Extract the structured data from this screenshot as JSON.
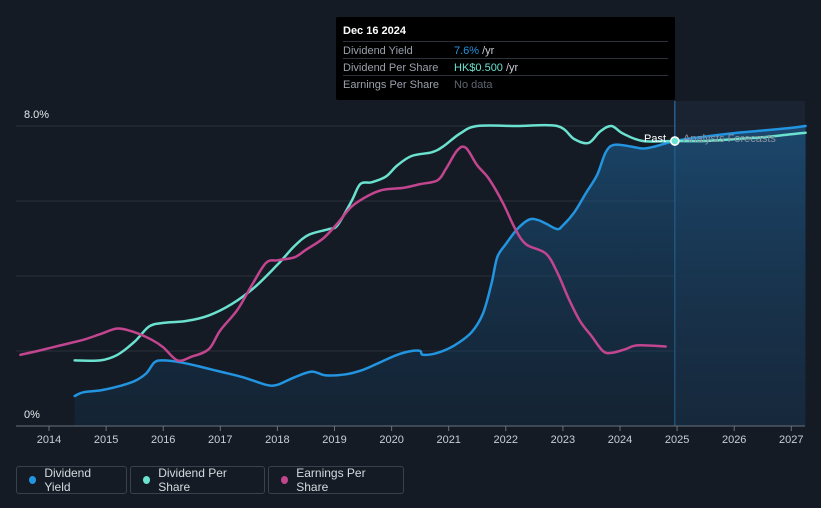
{
  "tooltip": {
    "date": "Dec 16 2024",
    "rows": [
      {
        "label": "Dividend Yield",
        "value": "7.6%",
        "unit": "/yr"
      },
      {
        "label": "Dividend Per Share",
        "value": "HK$0.500",
        "unit": "/yr"
      },
      {
        "label": "Earnings Per Share",
        "value": "No data",
        "unit": ""
      }
    ]
  },
  "annotations": {
    "past": "Past",
    "forecast": "Analysts Forecasts"
  },
  "legend": [
    {
      "label": "Dividend Yield",
      "color": "#2394df"
    },
    {
      "label": "Dividend Per Share",
      "color": "#6be1cf"
    },
    {
      "label": "Earnings Per Share",
      "color": "#c2458f"
    }
  ],
  "chart_data": {
    "type": "line",
    "title": "",
    "xlabel": "",
    "ylabel": "",
    "x_ticks": [
      "2014",
      "2015",
      "2016",
      "2017",
      "2018",
      "2019",
      "2020",
      "2021",
      "2022",
      "2023",
      "2024",
      "2025",
      "2026",
      "2027"
    ],
    "y_ticks": [
      "0%",
      "8.0%"
    ],
    "ylim": [
      0,
      8.0
    ],
    "xlim": [
      2013.5,
      2027.25
    ],
    "grid": true,
    "forecast_start": 2024.96,
    "series": [
      {
        "name": "Dividend Yield",
        "color": "#2394df",
        "area": true,
        "points": [
          [
            2014.45,
            0.8
          ],
          [
            2014.6,
            0.9
          ],
          [
            2014.9,
            0.95
          ],
          [
            2015.2,
            1.05
          ],
          [
            2015.5,
            1.2
          ],
          [
            2015.7,
            1.4
          ],
          [
            2015.85,
            1.7
          ],
          [
            2016.0,
            1.75
          ],
          [
            2016.3,
            1.7
          ],
          [
            2016.6,
            1.6
          ],
          [
            2017.0,
            1.45
          ],
          [
            2017.4,
            1.3
          ],
          [
            2017.8,
            1.1
          ],
          [
            2018.0,
            1.1
          ],
          [
            2018.3,
            1.3
          ],
          [
            2018.6,
            1.45
          ],
          [
            2018.85,
            1.35
          ],
          [
            2019.2,
            1.38
          ],
          [
            2019.5,
            1.5
          ],
          [
            2019.8,
            1.7
          ],
          [
            2020.1,
            1.9
          ],
          [
            2020.35,
            2.0
          ],
          [
            2020.5,
            2.0
          ],
          [
            2020.55,
            1.9
          ],
          [
            2020.8,
            1.95
          ],
          [
            2021.1,
            2.15
          ],
          [
            2021.4,
            2.5
          ],
          [
            2021.6,
            3.0
          ],
          [
            2021.75,
            3.8
          ],
          [
            2021.85,
            4.5
          ],
          [
            2022.0,
            4.85
          ],
          [
            2022.2,
            5.25
          ],
          [
            2022.4,
            5.5
          ],
          [
            2022.55,
            5.5
          ],
          [
            2022.7,
            5.4
          ],
          [
            2022.9,
            5.25
          ],
          [
            2023.0,
            5.35
          ],
          [
            2023.2,
            5.7
          ],
          [
            2023.4,
            6.2
          ],
          [
            2023.6,
            6.7
          ],
          [
            2023.75,
            7.3
          ],
          [
            2023.9,
            7.5
          ],
          [
            2024.2,
            7.45
          ],
          [
            2024.4,
            7.4
          ],
          [
            2024.6,
            7.45
          ],
          [
            2024.96,
            7.6
          ],
          [
            2025.5,
            7.72
          ],
          [
            2026.0,
            7.81
          ],
          [
            2026.5,
            7.88
          ],
          [
            2027.0,
            7.95
          ],
          [
            2027.25,
            8.0
          ]
        ]
      },
      {
        "name": "Dividend Per Share",
        "color": "#6be1cf",
        "area": false,
        "points": [
          [
            2014.45,
            1.75
          ],
          [
            2014.9,
            1.75
          ],
          [
            2015.2,
            1.9
          ],
          [
            2015.5,
            2.25
          ],
          [
            2015.75,
            2.65
          ],
          [
            2016.0,
            2.75
          ],
          [
            2016.4,
            2.8
          ],
          [
            2016.8,
            2.95
          ],
          [
            2017.2,
            3.25
          ],
          [
            2017.6,
            3.7
          ],
          [
            2018.0,
            4.3
          ],
          [
            2018.3,
            4.8
          ],
          [
            2018.55,
            5.1
          ],
          [
            2018.9,
            5.25
          ],
          [
            2019.05,
            5.35
          ],
          [
            2019.3,
            6.0
          ],
          [
            2019.45,
            6.45
          ],
          [
            2019.65,
            6.5
          ],
          [
            2019.9,
            6.65
          ],
          [
            2020.1,
            6.95
          ],
          [
            2020.35,
            7.2
          ],
          [
            2020.7,
            7.3
          ],
          [
            2020.9,
            7.45
          ],
          [
            2021.2,
            7.8
          ],
          [
            2021.5,
            8.0
          ],
          [
            2022.2,
            8.0
          ],
          [
            2022.9,
            8.0
          ],
          [
            2023.2,
            7.65
          ],
          [
            2023.45,
            7.55
          ],
          [
            2023.65,
            7.85
          ],
          [
            2023.85,
            8.0
          ],
          [
            2024.05,
            7.8
          ],
          [
            2024.4,
            7.6
          ],
          [
            2024.96,
            7.6
          ],
          [
            2025.5,
            7.6
          ],
          [
            2026.0,
            7.65
          ],
          [
            2026.5,
            7.7
          ],
          [
            2027.0,
            7.78
          ],
          [
            2027.25,
            7.82
          ]
        ]
      },
      {
        "name": "Earnings Per Share",
        "color": "#c2458f",
        "area": false,
        "points": [
          [
            2013.5,
            1.9
          ],
          [
            2013.8,
            2.0
          ],
          [
            2014.2,
            2.15
          ],
          [
            2014.6,
            2.3
          ],
          [
            2014.9,
            2.45
          ],
          [
            2015.2,
            2.6
          ],
          [
            2015.5,
            2.5
          ],
          [
            2015.8,
            2.3
          ],
          [
            2016.0,
            2.1
          ],
          [
            2016.25,
            1.75
          ],
          [
            2016.5,
            1.85
          ],
          [
            2016.8,
            2.05
          ],
          [
            2017.0,
            2.55
          ],
          [
            2017.3,
            3.1
          ],
          [
            2017.55,
            3.75
          ],
          [
            2017.8,
            4.35
          ],
          [
            2018.0,
            4.42
          ],
          [
            2018.3,
            4.5
          ],
          [
            2018.5,
            4.7
          ],
          [
            2018.8,
            5.0
          ],
          [
            2019.05,
            5.4
          ],
          [
            2019.3,
            5.85
          ],
          [
            2019.6,
            6.15
          ],
          [
            2019.85,
            6.3
          ],
          [
            2020.2,
            6.35
          ],
          [
            2020.5,
            6.45
          ],
          [
            2020.8,
            6.55
          ],
          [
            2020.95,
            6.85
          ],
          [
            2021.15,
            7.35
          ],
          [
            2021.3,
            7.42
          ],
          [
            2021.5,
            6.95
          ],
          [
            2021.7,
            6.6
          ],
          [
            2021.95,
            5.95
          ],
          [
            2022.15,
            5.3
          ],
          [
            2022.35,
            4.85
          ],
          [
            2022.7,
            4.6
          ],
          [
            2022.9,
            4.1
          ],
          [
            2023.1,
            3.4
          ],
          [
            2023.3,
            2.8
          ],
          [
            2023.5,
            2.4
          ],
          [
            2023.7,
            2.0
          ],
          [
            2023.85,
            1.95
          ],
          [
            2024.1,
            2.05
          ],
          [
            2024.3,
            2.15
          ],
          [
            2024.8,
            2.12
          ]
        ]
      }
    ]
  }
}
